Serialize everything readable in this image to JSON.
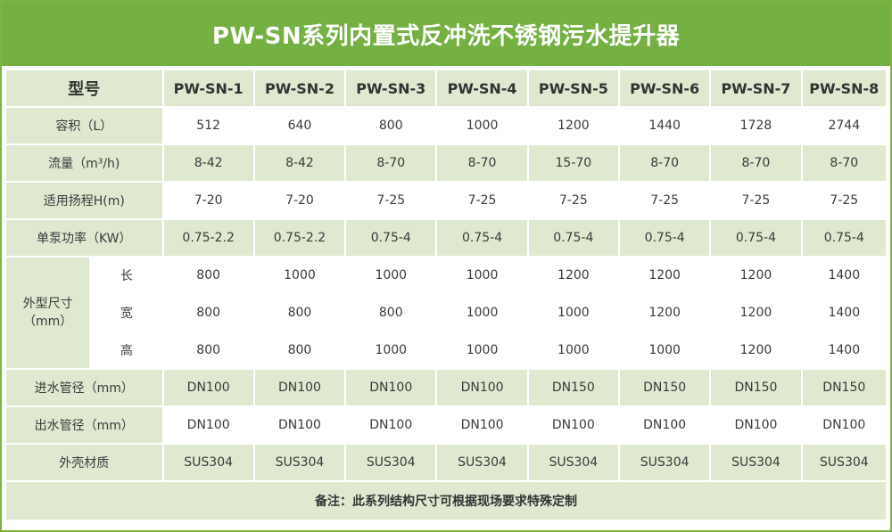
{
  "title": "PW-SN系列内置式反冲洗不锈钢污水提升器",
  "header": {
    "label": "型号",
    "models": [
      "PW-SN-1",
      "PW-SN-2",
      "PW-SN-3",
      "PW-SN-4",
      "PW-SN-5",
      "PW-SN-6",
      "PW-SN-7",
      "PW-SN-8"
    ]
  },
  "rows": [
    {
      "label": "容积（L）",
      "values": [
        "512",
        "640",
        "800",
        "1000",
        "1200",
        "1440",
        "1728",
        "2744"
      ]
    },
    {
      "label": "流量（m³/h)",
      "values": [
        "8-42",
        "8-42",
        "8-70",
        "8-70",
        "15-70",
        "8-70",
        "8-70",
        "8-70"
      ]
    },
    {
      "label": "适用扬程H(m)",
      "values": [
        "7-20",
        "7-20",
        "7-25",
        "7-25",
        "7-25",
        "7-25",
        "7-25",
        "7-25"
      ]
    },
    {
      "label": "单泵功率（KW）",
      "values": [
        "0.75-2.2",
        "0.75-2.2",
        "0.75-4",
        "0.75-4",
        "0.75-4",
        "0.75-4",
        "0.75-4",
        "0.75-4"
      ]
    }
  ],
  "dimensions": {
    "label_line1": "外型尺寸",
    "label_line2": "（mm）",
    "rows": [
      {
        "label": "长",
        "values": [
          "800",
          "1000",
          "1000",
          "1000",
          "1200",
          "1200",
          "1200",
          "1400"
        ]
      },
      {
        "label": "宽",
        "values": [
          "800",
          "800",
          "800",
          "1000",
          "1000",
          "1200",
          "1200",
          "1400"
        ]
      },
      {
        "label": "高",
        "values": [
          "800",
          "800",
          "1000",
          "1000",
          "1000",
          "1000",
          "1200",
          "1400"
        ]
      }
    ]
  },
  "rows_after": [
    {
      "label": "进水管径（mm）",
      "values": [
        "DN100",
        "DN100",
        "DN100",
        "DN100",
        "DN150",
        "DN150",
        "DN150",
        "DN150"
      ]
    },
    {
      "label": "出水管径（mm）",
      "values": [
        "DN100",
        "DN100",
        "DN100",
        "DN100",
        "DN100",
        "DN100",
        "DN100",
        "DN100"
      ]
    },
    {
      "label": "外壳材质",
      "values": [
        "SUS304",
        "SUS304",
        "SUS304",
        "SUS304",
        "SUS304",
        "SUS304",
        "SUS304",
        "SUS304"
      ]
    }
  ],
  "note": "备注：此系列结构尺寸可根据现场要求特殊定制",
  "colors": {
    "accent": "#75b043",
    "row_shade": "#dfe9d0",
    "border": "#7cb342"
  }
}
